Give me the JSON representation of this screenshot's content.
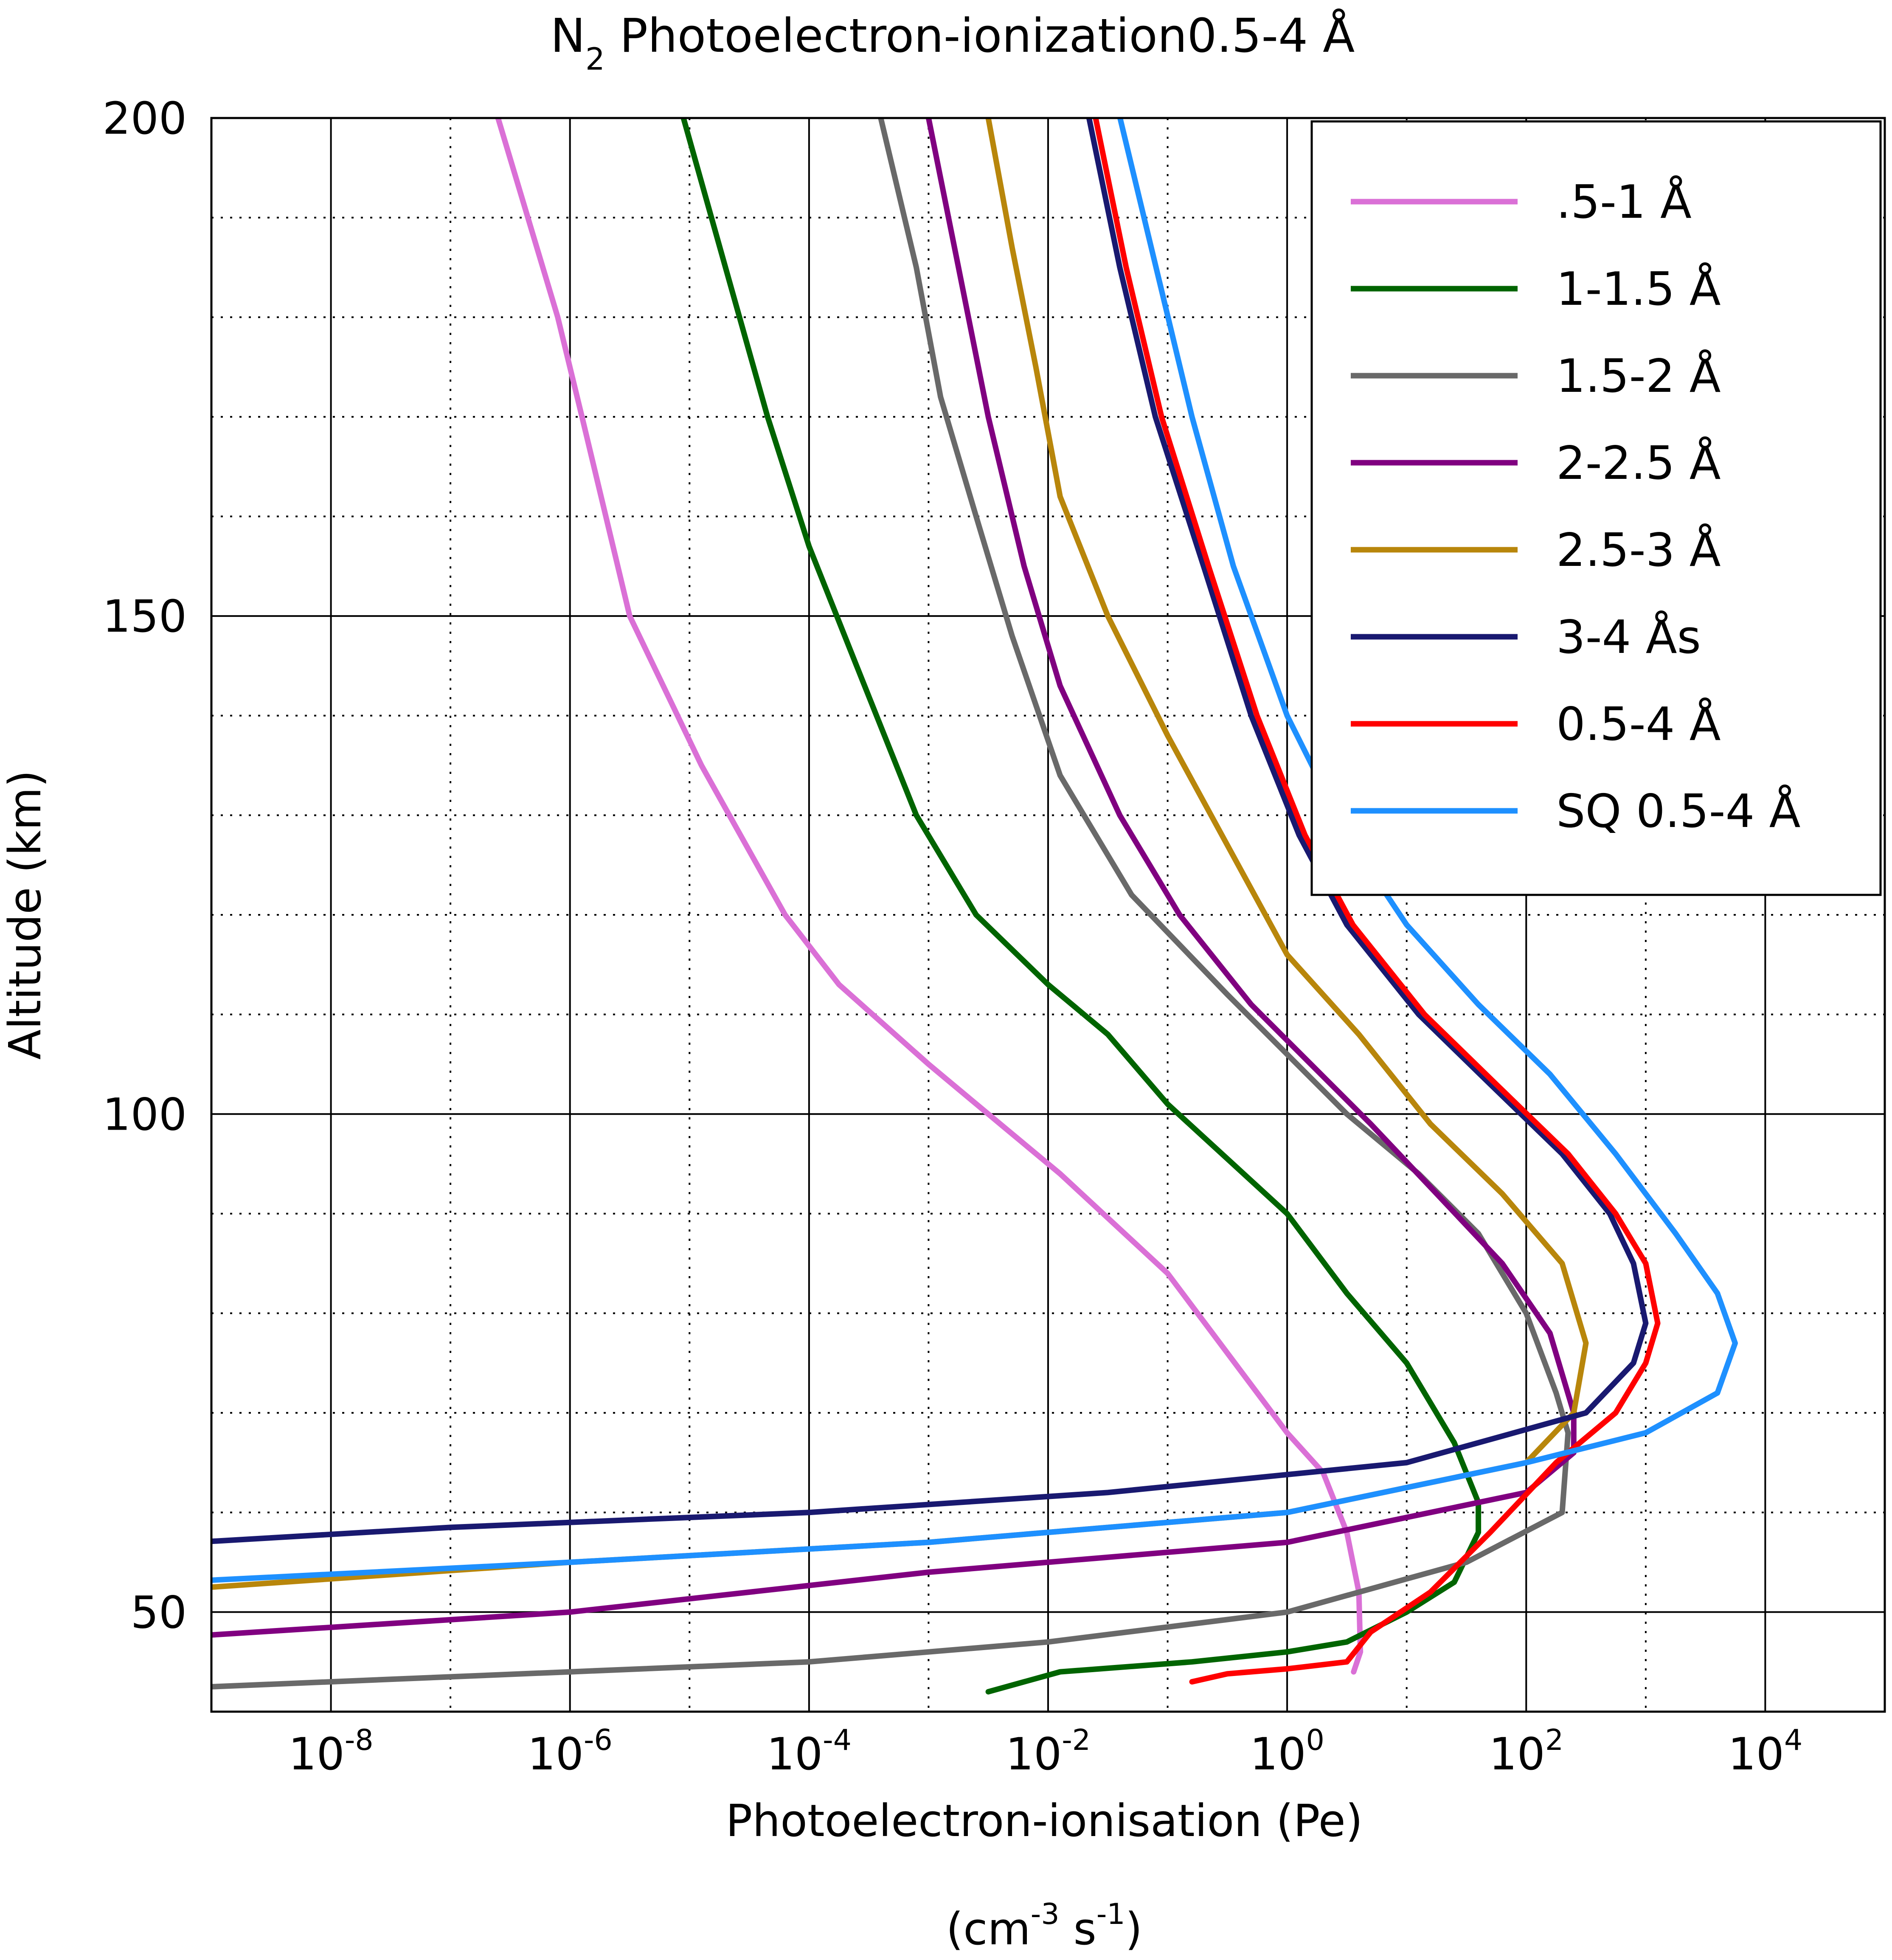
{
  "chart_data": {
    "type": "line",
    "title": "N",
    "title_subscript": "2",
    "title_rest": " Photoelectron-ionization0.5-4 Å",
    "xlabel": "Photoelectron-ionisation (Pe)",
    "xunits": {
      "open": "(cm",
      "exp1": "-3",
      "mid": " s",
      "exp2": "-1",
      "close": ")"
    },
    "ylabel": "Altitude (km)",
    "xscale": "log",
    "xlim": [
      1e-09,
      100000.0
    ],
    "ylim": [
      40,
      200
    ],
    "x_major_ticks": [
      {
        "base": "10",
        "exp": "-8",
        "value": 1e-08
      },
      {
        "base": "10",
        "exp": "-6",
        "value": 1e-06
      },
      {
        "base": "10",
        "exp": "-4",
        "value": 0.0001
      },
      {
        "base": "10",
        "exp": "-2",
        "value": 0.01
      },
      {
        "base": "10",
        "exp": "0",
        "value": 1
      },
      {
        "base": "10",
        "exp": "2",
        "value": 100
      },
      {
        "base": "10",
        "exp": "4",
        "value": 10000
      }
    ],
    "x_minor_ticks": [
      1e-07,
      1e-05,
      0.001,
      0.1,
      10,
      1000,
      100000
    ],
    "y_major_ticks": [
      {
        "label": "50",
        "value": 50
      },
      {
        "label": "100",
        "value": 100
      },
      {
        "label": "150",
        "value": 150
      },
      {
        "label": "200",
        "value": 200
      }
    ],
    "y_minor_ticks": [
      60,
      70,
      80,
      90,
      110,
      120,
      130,
      140,
      160,
      170,
      180,
      190
    ],
    "grid": {
      "major": "solid",
      "minor": "dotted"
    },
    "legend_position": "top-right",
    "series": [
      {
        "name": ".5-1 Å",
        "color": "#da70d6",
        "points": [
          [
            2.5e-07,
            200
          ],
          [
            7.9e-07,
            180
          ],
          [
            1.26e-06,
            170
          ],
          [
            3.16e-06,
            150
          ],
          [
            1.26e-05,
            135
          ],
          [
            6.3e-05,
            120
          ],
          [
            0.000178,
            113
          ],
          [
            0.001,
            105
          ],
          [
            0.00316,
            100
          ],
          [
            0.0126,
            94
          ],
          [
            0.1,
            84
          ],
          [
            1,
            68
          ],
          [
            2,
            64
          ],
          [
            3.16,
            58
          ],
          [
            3.98,
            52
          ],
          [
            4.1,
            46
          ],
          [
            3.6,
            44
          ]
        ]
      },
      {
        "name": "1-1.5 Å",
        "color": "#006400",
        "points": [
          [
            8.9e-06,
            200
          ],
          [
            2e-05,
            185
          ],
          [
            4.5e-05,
            170
          ],
          [
            0.0001,
            157
          ],
          [
            0.00025,
            145
          ],
          [
            0.00079,
            130
          ],
          [
            0.0025,
            120
          ],
          [
            0.01,
            113
          ],
          [
            0.0316,
            108
          ],
          [
            0.1,
            101
          ],
          [
            1,
            90
          ],
          [
            3.16,
            82
          ],
          [
            10,
            75
          ],
          [
            25,
            67
          ],
          [
            39.8,
            61
          ],
          [
            39.8,
            58
          ],
          [
            25,
            53
          ],
          [
            10,
            50
          ],
          [
            3.16,
            47
          ],
          [
            1,
            46
          ],
          [
            0.16,
            45
          ],
          [
            0.0126,
            44
          ],
          [
            0.00316,
            42
          ]
        ]
      },
      {
        "name": "1.5-2 Å",
        "color": "#696969",
        "points": [
          [
            0.000398,
            200
          ],
          [
            0.00079,
            185
          ],
          [
            0.00126,
            172
          ],
          [
            0.0025,
            160
          ],
          [
            0.005,
            148
          ],
          [
            0.0126,
            134
          ],
          [
            0.05,
            122
          ],
          [
            0.316,
            112
          ],
          [
            1,
            106
          ],
          [
            3.16,
            100
          ],
          [
            12.6,
            94
          ],
          [
            39.8,
            88
          ],
          [
            100.0,
            80
          ],
          [
            178.0,
            72
          ],
          [
            224.0,
            68
          ],
          [
            200.0,
            60
          ],
          [
            31.6,
            55
          ],
          [
            1,
            50
          ],
          [
            0.01,
            47
          ],
          [
            0.0001,
            45
          ],
          [
            1e-06,
            44
          ],
          [
            1e-09,
            42.5
          ]
        ]
      },
      {
        "name": "2-2.5 Å",
        "color": "#800080",
        "points": [
          [
            0.001,
            200
          ],
          [
            0.00178,
            185
          ],
          [
            0.00316,
            170
          ],
          [
            0.0063,
            155
          ],
          [
            0.0126,
            143
          ],
          [
            0.0398,
            130
          ],
          [
            0.126,
            120
          ],
          [
            0.5,
            111
          ],
          [
            1.58,
            105
          ],
          [
            5,
            99
          ],
          [
            17.8,
            92
          ],
          [
            63.0,
            85
          ],
          [
            158.0,
            78
          ],
          [
            250.0,
            70
          ],
          [
            250.0,
            66
          ],
          [
            100.0,
            62
          ],
          [
            1,
            57
          ],
          [
            0.001,
            54
          ],
          [
            1e-06,
            50
          ],
          [
            1e-09,
            47.7
          ]
        ]
      },
      {
        "name": "2.5-3 Å",
        "color": "#b8860b",
        "points": [
          [
            0.00316,
            200
          ],
          [
            0.005,
            187
          ],
          [
            0.0079,
            175
          ],
          [
            0.0126,
            162
          ],
          [
            0.0316,
            150
          ],
          [
            0.1,
            138
          ],
          [
            0.316,
            127
          ],
          [
            1,
            116
          ],
          [
            3.98,
            108
          ],
          [
            15.8,
            99
          ],
          [
            63.0,
            92
          ],
          [
            200.0,
            85
          ],
          [
            316.0,
            77
          ],
          [
            250.0,
            70
          ],
          [
            100.0,
            65
          ],
          [
            1,
            60
          ],
          [
            0.001,
            57
          ],
          [
            1e-06,
            55
          ],
          [
            1e-09,
            52.5
          ]
        ]
      },
      {
        "name": "3-4 Ås",
        "color": "#191970",
        "points": [
          [
            0.022,
            200
          ],
          [
            0.0398,
            185
          ],
          [
            0.079,
            170
          ],
          [
            0.2,
            155
          ],
          [
            0.5,
            140
          ],
          [
            1.26,
            128
          ],
          [
            3.16,
            119
          ],
          [
            12.6,
            110
          ],
          [
            50.0,
            103
          ],
          [
            200.0,
            96
          ],
          [
            500.0,
            90
          ],
          [
            790.0,
            85
          ],
          [
            1000.0,
            79
          ],
          [
            790.0,
            75
          ],
          [
            316.0,
            70
          ],
          [
            10.0,
            65
          ],
          [
            0.0316,
            62
          ],
          [
            0.0001,
            60
          ],
          [
            1e-07,
            58.5
          ],
          [
            1e-09,
            57.1
          ]
        ]
      },
      {
        "name": "0.5-4 Å",
        "color": "#ff0000",
        "points": [
          [
            0.025,
            200
          ],
          [
            0.045,
            185
          ],
          [
            0.089,
            170
          ],
          [
            0.22,
            155
          ],
          [
            0.56,
            140
          ],
          [
            1.41,
            128
          ],
          [
            3.55,
            119
          ],
          [
            14.1,
            110
          ],
          [
            56.0,
            103
          ],
          [
            224.0,
            96
          ],
          [
            560.0,
            90
          ],
          [
            1000.0,
            85
          ],
          [
            1260.0,
            79
          ],
          [
            1000.0,
            75
          ],
          [
            560.0,
            70
          ],
          [
            178.0,
            65
          ],
          [
            50.0,
            58
          ],
          [
            15.8,
            52
          ],
          [
            5,
            48
          ],
          [
            3.16,
            45
          ],
          [
            1,
            44.3
          ],
          [
            0.316,
            43.8
          ],
          [
            0.16,
            43
          ]
        ]
      },
      {
        "name": "SQ 0.5-4 Å",
        "color": "#1e90ff",
        "points": [
          [
            0.04,
            200
          ],
          [
            0.08,
            185
          ],
          [
            0.16,
            170
          ],
          [
            0.355,
            155
          ],
          [
            1,
            140
          ],
          [
            3.16,
            128
          ],
          [
            10.0,
            119
          ],
          [
            39.8,
            111
          ],
          [
            158.0,
            104
          ],
          [
            560.0,
            96
          ],
          [
            1780.0,
            88
          ],
          [
            3980.0,
            82
          ],
          [
            5600.0,
            77
          ],
          [
            3980.0,
            72
          ],
          [
            1000.0,
            68
          ],
          [
            100.0,
            65
          ],
          [
            1,
            60
          ],
          [
            0.001,
            57
          ],
          [
            1e-06,
            55
          ],
          [
            1e-09,
            53.2
          ]
        ]
      }
    ]
  }
}
